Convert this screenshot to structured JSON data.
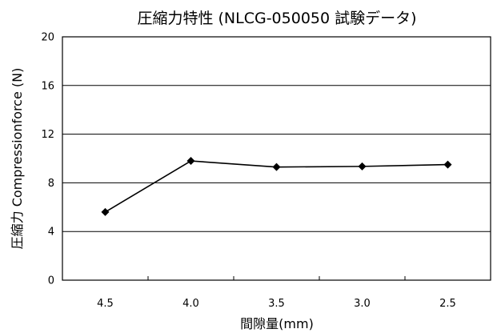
{
  "chart_data": {
    "type": "line",
    "title": "圧縮力特性 (NLCG-050050 試験データ)",
    "xlabel": "間隙量(mm)",
    "ylabel": "圧縮力 Compressionforce (N)",
    "categories": [
      "4.5",
      "4.0",
      "3.5",
      "3.0",
      "2.5"
    ],
    "series": [
      {
        "values": [
          5.6,
          9.8,
          9.3,
          9.35,
          9.5
        ]
      }
    ],
    "ylim": [
      0,
      20
    ],
    "yticks": [
      0,
      4,
      8,
      12,
      16,
      20
    ],
    "grid": true,
    "marker": "diamond",
    "legend": "none"
  }
}
